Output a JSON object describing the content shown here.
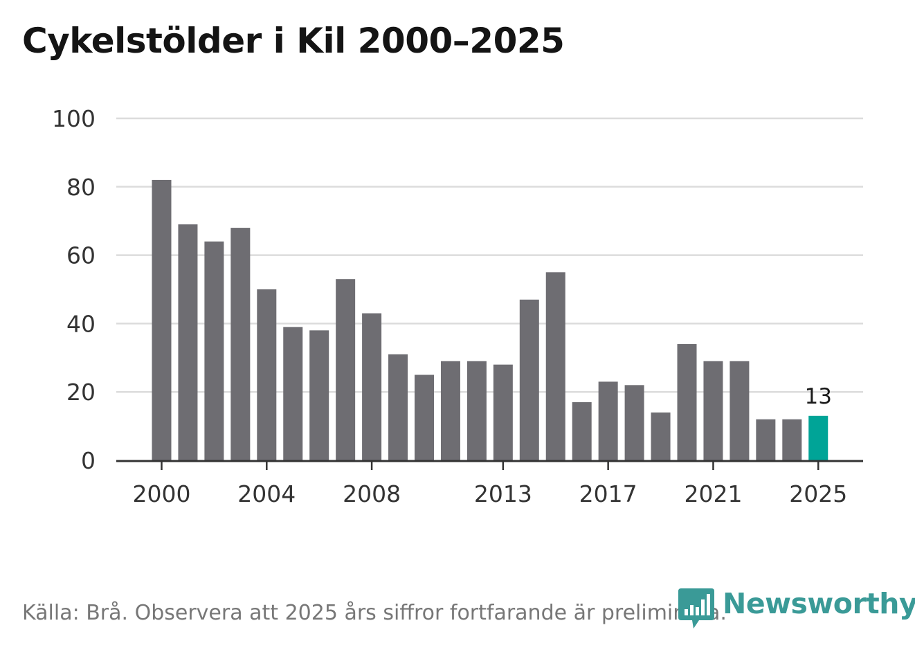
{
  "chart_data": {
    "type": "bar",
    "title": "Cykelstölder i Kil 2000–2025",
    "categories": [
      "2000",
      "2001",
      "2002",
      "2003",
      "2004",
      "2005",
      "2006",
      "2007",
      "2008",
      "2009",
      "2010",
      "2011",
      "2012",
      "2013",
      "2014",
      "2015",
      "2016",
      "2017",
      "2018",
      "2019",
      "2020",
      "2021",
      "2022",
      "2023",
      "2024",
      "2025"
    ],
    "values": [
      82,
      69,
      64,
      68,
      50,
      39,
      38,
      53,
      43,
      31,
      25,
      29,
      29,
      28,
      47,
      55,
      17,
      23,
      22,
      14,
      34,
      29,
      29,
      12,
      12,
      13
    ],
    "x_tick_labels": [
      "2000",
      "2004",
      "2008",
      "2013",
      "2017",
      "2021",
      "2025"
    ],
    "y_ticks": [
      "0",
      "20",
      "40",
      "60",
      "80",
      "100"
    ],
    "ylim": [
      0,
      100
    ],
    "xlabel": "",
    "ylabel": "",
    "grid": true,
    "highlight": {
      "category": "2025",
      "label": "13"
    },
    "colors": {
      "bar": "#6e6d72",
      "highlight": "#00a497",
      "grid": "#dcdcdc",
      "axis": "#333333",
      "text": "#333333"
    }
  },
  "footer": {
    "source": "Källa: Brå. Observera att 2025 års siffror fortfarande är preliminära."
  },
  "logo": {
    "text": "Newsworthy",
    "icon": "newsworthy-logo-icon",
    "color": "#3a9a97"
  }
}
